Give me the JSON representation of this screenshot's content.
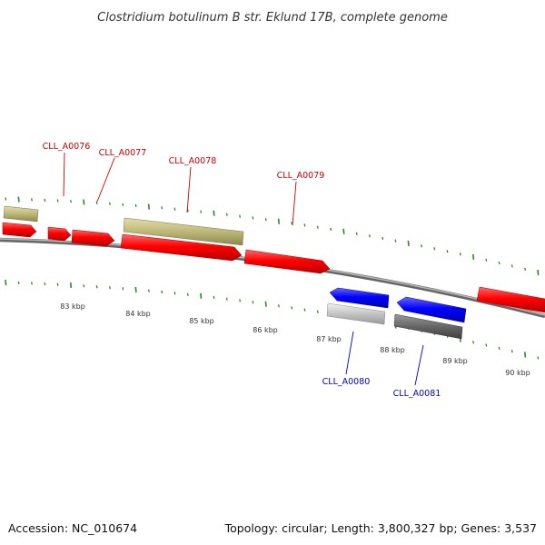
{
  "title": "Clostridium botulinum B str. Eklund 17B, complete genome",
  "footer": {
    "accession": "Accession: NC_010674",
    "stats": "Topology: circular; Length: 3,800,327 bp; Genes: 3,537"
  },
  "colors": {
    "forward_cds": "#ff0000",
    "reverse_cds": "#0000ff",
    "forward_gene": "#bdb878",
    "reverse_gene_light": "#bbbbbb",
    "reverse_gene_dark": "#666666",
    "tick": "#2a8a2a",
    "backbone": "#888888",
    "label_forward": "#cc0000",
    "label_reverse": "#0000cc"
  },
  "ticks": [
    {
      "kbp": 83,
      "label": "83 kbp"
    },
    {
      "kbp": 84,
      "label": "84 kbp"
    },
    {
      "kbp": 85,
      "label": "85 kbp"
    },
    {
      "kbp": 86,
      "label": "86 kbp"
    },
    {
      "kbp": 87,
      "label": "87 kbp"
    },
    {
      "kbp": 88,
      "label": "88 kbp"
    },
    {
      "kbp": 89,
      "label": "89 kbp"
    },
    {
      "kbp": 90,
      "label": "90 kbp"
    }
  ],
  "gene_labels": [
    {
      "name": "CLL_A0076",
      "strand": "forward"
    },
    {
      "name": "CLL_A0077",
      "strand": "forward"
    },
    {
      "name": "CLL_A0078",
      "strand": "forward"
    },
    {
      "name": "CLL_A0079",
      "strand": "forward"
    },
    {
      "name": "CLL_A0080",
      "strand": "reverse"
    },
    {
      "name": "CLL_A0081",
      "strand": "reverse"
    }
  ]
}
